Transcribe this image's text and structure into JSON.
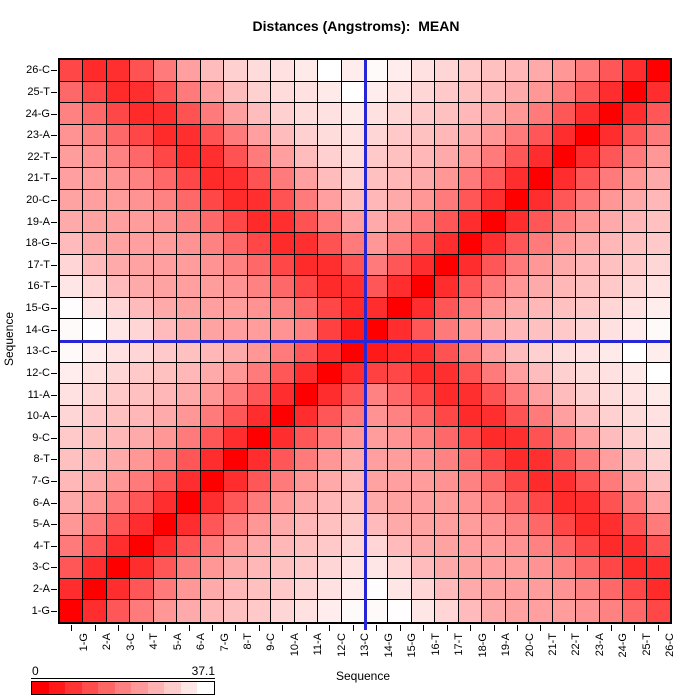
{
  "title": "Distances (Angstroms):  MEAN",
  "axes": {
    "x_title": "Sequence",
    "y_title": "Sequence"
  },
  "legend": {
    "min_label": "0",
    "max_label": "37.1",
    "min": 0,
    "max": 37.1,
    "segments": 11,
    "start_color": "#FF0000",
    "end_color": "#FFFFFF"
  },
  "crosshair": {
    "color": "#2626D6",
    "between_cols": [
      "13-C",
      "14-G"
    ],
    "between_rows": [
      "13-C",
      "14-G"
    ],
    "boundary_index": 13
  },
  "chart_data": {
    "type": "heatmap",
    "title": "Distances (Angstroms):  MEAN",
    "xlabel": "Sequence",
    "ylabel": "Sequence",
    "value_range": [
      0,
      37.1
    ],
    "colormap": "red-to-white",
    "row_order_display": "residue 26 at top-left origin bottom for residue 1",
    "categories": [
      "1-G",
      "2-A",
      "3-C",
      "4-T",
      "5-A",
      "6-A",
      "7-G",
      "8-T",
      "9-C",
      "10-A",
      "11-A",
      "12-C",
      "13-C",
      "14-G",
      "15-G",
      "16-T",
      "17-T",
      "18-G",
      "19-A",
      "20-C",
      "21-T",
      "22-T",
      "23-A",
      "24-G",
      "25-T",
      "26-C"
    ],
    "values": [
      [
        0,
        6.5,
        12.6,
        17.8,
        21.9,
        24.8,
        26.6,
        27.9,
        29.2,
        31.1,
        32.8,
        34.4,
        36.3,
        36.3,
        36.8,
        33.5,
        31.0,
        27.2,
        24.7,
        23.5,
        23.1,
        22.7,
        21.4,
        18.9,
        15.1,
        10.4
      ],
      [
        6.5,
        0,
        6.5,
        12.6,
        17.8,
        21.9,
        24.8,
        26.6,
        27.9,
        29.2,
        31.1,
        32.8,
        34.4,
        36.8,
        33.5,
        31.0,
        27.2,
        24.7,
        23.5,
        23.1,
        22.7,
        21.4,
        18.9,
        15.1,
        10.4,
        6.1
      ],
      [
        12.6,
        6.5,
        0,
        6.5,
        12.6,
        17.8,
        21.9,
        24.8,
        26.6,
        27.9,
        29.2,
        31.1,
        32.8,
        33.5,
        31.0,
        27.2,
        24.7,
        23.5,
        23.1,
        22.7,
        21.4,
        18.9,
        15.1,
        10.4,
        6.1,
        6.9
      ],
      [
        17.8,
        12.6,
        6.5,
        0,
        6.5,
        12.6,
        17.8,
        21.9,
        24.8,
        26.6,
        27.9,
        29.2,
        31.1,
        31.0,
        27.2,
        24.7,
        23.5,
        23.1,
        22.7,
        21.4,
        18.9,
        15.1,
        10.4,
        6.1,
        6.9,
        12.1
      ],
      [
        21.9,
        17.8,
        12.6,
        6.5,
        0,
        6.5,
        12.6,
        17.8,
        21.9,
        24.8,
        26.6,
        27.9,
        29.2,
        27.2,
        24.7,
        23.5,
        23.1,
        22.7,
        21.4,
        18.9,
        15.1,
        10.4,
        6.1,
        6.9,
        12.1,
        17.9
      ],
      [
        24.8,
        21.9,
        17.8,
        12.6,
        6.5,
        0,
        6.5,
        12.6,
        17.8,
        21.9,
        24.8,
        26.6,
        27.9,
        24.7,
        23.5,
        23.1,
        22.7,
        21.4,
        18.9,
        15.1,
        10.4,
        6.1,
        6.9,
        12.1,
        17.9,
        23.1
      ],
      [
        26.6,
        24.8,
        21.9,
        17.8,
        12.6,
        6.5,
        0,
        6.5,
        12.6,
        17.8,
        21.9,
        24.8,
        26.6,
        23.5,
        23.1,
        22.7,
        21.4,
        18.9,
        15.1,
        10.4,
        6.1,
        6.9,
        12.1,
        17.9,
        23.1,
        27.3
      ],
      [
        27.9,
        26.6,
        24.8,
        21.9,
        17.8,
        12.6,
        6.5,
        0,
        6.5,
        12.6,
        17.8,
        21.9,
        24.8,
        23.1,
        22.7,
        21.4,
        18.9,
        15.1,
        10.4,
        6.1,
        6.9,
        12.1,
        17.9,
        23.1,
        27.3,
        30.3
      ],
      [
        29.2,
        27.9,
        26.6,
        24.8,
        21.9,
        17.8,
        12.6,
        6.5,
        0,
        6.5,
        12.6,
        17.8,
        21.9,
        22.7,
        21.4,
        18.9,
        15.1,
        10.4,
        6.1,
        6.9,
        12.1,
        17.9,
        23.1,
        27.3,
        30.3,
        32.0
      ],
      [
        31.1,
        29.2,
        27.9,
        26.6,
        24.8,
        21.9,
        17.8,
        12.6,
        6.5,
        0,
        6.5,
        12.6,
        17.8,
        21.4,
        18.9,
        15.1,
        10.4,
        6.1,
        6.9,
        12.1,
        17.9,
        23.1,
        27.3,
        30.3,
        32.0,
        32.8
      ],
      [
        32.8,
        31.1,
        29.2,
        27.9,
        26.6,
        24.8,
        21.9,
        17.8,
        12.6,
        6.5,
        0,
        6.5,
        12.6,
        18.9,
        15.1,
        10.4,
        6.1,
        6.9,
        12.1,
        17.9,
        23.1,
        27.3,
        30.3,
        32.0,
        32.8,
        34.0
      ],
      [
        34.4,
        32.8,
        31.1,
        29.2,
        27.9,
        26.6,
        24.8,
        21.9,
        17.8,
        12.6,
        6.5,
        0,
        6.5,
        9.5,
        10.4,
        6.1,
        6.9,
        12.1,
        17.9,
        23.1,
        27.3,
        30.3,
        32.0,
        32.8,
        34.0,
        37.1
      ],
      [
        36.3,
        34.4,
        32.8,
        31.1,
        29.2,
        27.9,
        26.6,
        24.8,
        21.9,
        17.8,
        12.6,
        6.5,
        0,
        3.6,
        6.1,
        6.9,
        12.1,
        17.9,
        23.1,
        27.3,
        30.3,
        32.0,
        32.8,
        34.0,
        37.1,
        34.5
      ],
      [
        36.3,
        36.8,
        33.5,
        31.0,
        27.2,
        24.7,
        23.5,
        23.1,
        22.7,
        21.4,
        18.9,
        9.5,
        3.6,
        0,
        6.5,
        12.6,
        17.8,
        21.9,
        24.8,
        26.6,
        27.9,
        29.2,
        31.1,
        32.8,
        34.4,
        36.3
      ],
      [
        36.8,
        33.5,
        31.0,
        27.2,
        24.7,
        23.5,
        23.1,
        22.7,
        21.4,
        18.9,
        15.1,
        10.4,
        6.1,
        6.5,
        0,
        6.5,
        12.6,
        17.8,
        21.9,
        24.8,
        26.6,
        27.9,
        29.2,
        31.1,
        32.8,
        34.4
      ],
      [
        33.5,
        31.0,
        27.2,
        24.7,
        23.5,
        23.1,
        22.7,
        21.4,
        18.9,
        15.1,
        10.4,
        6.1,
        6.9,
        12.6,
        6.5,
        0,
        6.5,
        12.6,
        17.8,
        21.9,
        24.8,
        26.6,
        27.9,
        29.2,
        31.1,
        32.8
      ],
      [
        31.0,
        27.2,
        24.7,
        23.5,
        23.1,
        22.7,
        21.4,
        18.9,
        15.1,
        10.4,
        6.1,
        6.9,
        12.1,
        17.8,
        12.6,
        6.5,
        0,
        6.5,
        12.6,
        17.8,
        21.9,
        24.8,
        26.6,
        27.9,
        29.2,
        31.1
      ],
      [
        27.2,
        24.7,
        23.5,
        23.1,
        22.7,
        21.4,
        18.9,
        15.1,
        10.4,
        6.1,
        6.9,
        12.1,
        17.9,
        21.9,
        17.8,
        12.6,
        6.5,
        0,
        6.5,
        12.6,
        17.8,
        21.9,
        24.8,
        26.6,
        27.9,
        29.2
      ],
      [
        24.7,
        23.5,
        23.1,
        22.7,
        21.4,
        18.9,
        15.1,
        10.4,
        6.1,
        6.9,
        12.1,
        17.9,
        23.1,
        24.8,
        21.9,
        17.8,
        12.6,
        6.5,
        0,
        6.5,
        12.6,
        17.8,
        21.9,
        24.8,
        26.6,
        27.9
      ],
      [
        23.5,
        23.1,
        22.7,
        21.4,
        18.9,
        15.1,
        10.4,
        6.1,
        6.9,
        12.1,
        17.9,
        23.1,
        27.3,
        26.6,
        24.8,
        21.9,
        17.8,
        12.6,
        6.5,
        0,
        6.5,
        12.6,
        17.8,
        21.9,
        24.8,
        26.6
      ],
      [
        23.1,
        22.7,
        21.4,
        18.9,
        15.1,
        10.4,
        6.1,
        6.9,
        12.1,
        17.9,
        23.1,
        27.3,
        30.3,
        27.9,
        26.6,
        24.8,
        21.9,
        17.8,
        12.6,
        6.5,
        0,
        6.5,
        12.6,
        17.8,
        21.9,
        24.8
      ],
      [
        22.7,
        21.4,
        18.9,
        15.1,
        10.4,
        6.1,
        6.9,
        12.1,
        17.9,
        23.1,
        27.3,
        30.3,
        32.0,
        29.2,
        27.9,
        26.6,
        24.8,
        21.9,
        17.8,
        12.6,
        6.5,
        0,
        6.5,
        12.6,
        17.8,
        21.9
      ],
      [
        21.4,
        18.9,
        15.1,
        10.4,
        6.1,
        6.9,
        12.1,
        17.9,
        23.1,
        27.3,
        30.3,
        32.0,
        32.8,
        31.1,
        29.2,
        27.9,
        26.6,
        24.8,
        21.9,
        17.8,
        12.6,
        6.5,
        0,
        6.5,
        12.6,
        17.8
      ],
      [
        18.9,
        15.1,
        10.4,
        6.1,
        6.9,
        12.1,
        17.9,
        23.1,
        27.3,
        30.3,
        32.0,
        32.8,
        34.0,
        32.8,
        31.1,
        29.2,
        27.9,
        26.6,
        24.8,
        21.9,
        17.8,
        12.6,
        6.5,
        0,
        6.5,
        12.6
      ],
      [
        15.1,
        10.4,
        6.1,
        6.9,
        12.1,
        17.9,
        23.1,
        27.3,
        30.3,
        32.0,
        32.8,
        34.0,
        37.1,
        34.4,
        32.8,
        31.1,
        29.2,
        27.9,
        26.6,
        24.8,
        21.9,
        17.8,
        12.6,
        6.5,
        0,
        6.5
      ],
      [
        10.4,
        6.1,
        6.9,
        12.1,
        17.9,
        23.1,
        27.3,
        30.3,
        32.0,
        32.8,
        34.0,
        37.1,
        34.5,
        36.3,
        34.4,
        32.8,
        31.1,
        29.2,
        27.9,
        26.6,
        24.8,
        21.9,
        17.8,
        12.6,
        6.5,
        0
      ]
    ]
  }
}
